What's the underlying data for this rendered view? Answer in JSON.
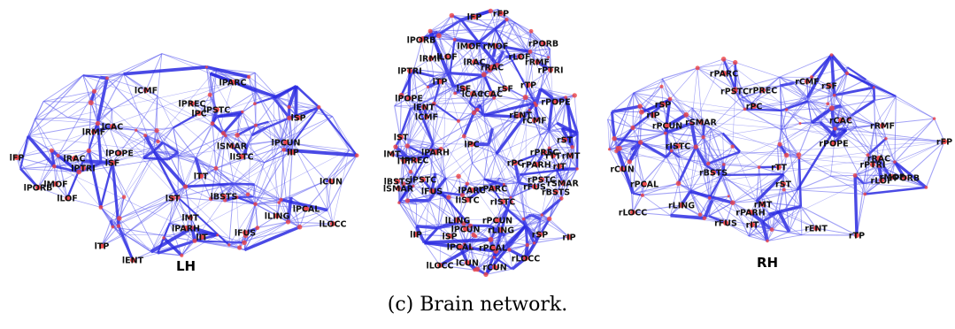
{
  "caption": "(c) Brain network.",
  "colors": {
    "edge": "#5555ee",
    "edge_strong": "#2a2ae0",
    "node": "#ee4444",
    "label": "#111111"
  },
  "panels": [
    {
      "id": "left-hemisphere",
      "hemisphere_label": "LH",
      "regions": [
        "lSF",
        "lCMF",
        "lPARC",
        "lPREC",
        "lPSTC",
        "lPC",
        "lRMF",
        "lCAC",
        "lSP",
        "lSMAR",
        "lISTC",
        "lPCUN",
        "lIP",
        "lFP",
        "lRAC",
        "lPOPE",
        "lPTRI",
        "lMOF",
        "lPORB",
        "lLOF",
        "lTT",
        "lST",
        "lBSTS",
        "lCUN",
        "lMT",
        "lPARH",
        "lIT",
        "lFUS",
        "lLING",
        "lPCAL",
        "lLOCC",
        "lTP",
        "lENT"
      ]
    },
    {
      "id": "top-view",
      "hemisphere_label": "",
      "regions": [
        "lFP",
        "rFP",
        "lPORB",
        "rPORB",
        "lMOF",
        "rMOF",
        "lRMF",
        "lLOF",
        "rLOF",
        "rRMF",
        "lRAC",
        "rRAC",
        "lPTRI",
        "rPTRI",
        "lTP",
        "rTP",
        "lSF",
        "rSF",
        "lCAC",
        "rCAC",
        "lPOPE",
        "rPOPE",
        "lENT",
        "rENT",
        "lCMF",
        "rCMF",
        "lST",
        "rST",
        "lPC",
        "rPC",
        "lPARH",
        "rPREC",
        "rTT",
        "lMT",
        "lTT",
        "lPREC",
        "rMT",
        "rIT",
        "rPARH",
        "lBSTS",
        "lSMAR",
        "lPSTC",
        "rPSTC",
        "rSMAR",
        "lFUS",
        "lPARC",
        "rPARC",
        "rFUS",
        "rBSTS",
        "lISTC",
        "rISTC",
        "lLING",
        "lPCUN",
        "rPCUN",
        "rLING",
        "lIP",
        "lSP",
        "rSP",
        "rIP",
        "lPCAL",
        "rPCAL",
        "lLOCC",
        "rLOCC",
        "lCUN",
        "rCUN"
      ]
    },
    {
      "id": "right-hemisphere",
      "hemisphere_label": "RH",
      "regions": [
        "rPARC",
        "rCMF",
        "rPSTC",
        "rPREC",
        "rSF",
        "rSP",
        "rIP",
        "rPCUN",
        "rSMAR",
        "rPC",
        "rCAC",
        "rRMF",
        "rISTC",
        "rPOPE",
        "rFP",
        "rCUN",
        "rBSTS",
        "rTT",
        "rRAC",
        "rPTRI",
        "rLOF",
        "rMOF",
        "rPORB",
        "rPCAL",
        "rST",
        "rLOCC",
        "rLING",
        "rMT",
        "rPARH",
        "rFUS",
        "rIT",
        "rENT",
        "rTP"
      ]
    }
  ]
}
